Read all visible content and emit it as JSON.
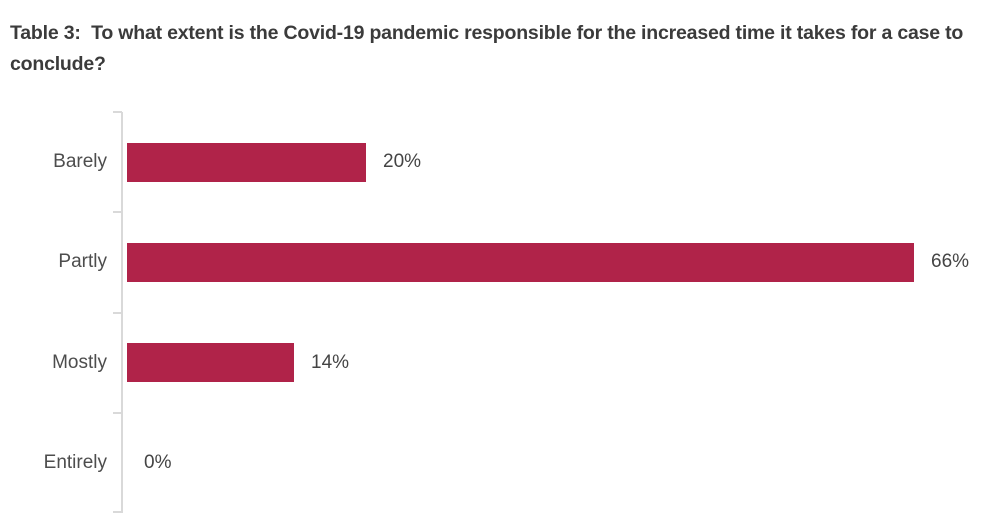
{
  "title": "Table 3:  To what extent is the Covid-19 pandemic responsible for the increased time it takes for a case to conclude?",
  "chart_data": {
    "type": "bar",
    "orientation": "horizontal",
    "title": "Table 3:  To what extent is the Covid-19 pandemic responsible for the increased time it takes for a case to conclude?",
    "categories": [
      "Barely",
      "Partly",
      "Mostly",
      "Entirely"
    ],
    "values": [
      20,
      66,
      14,
      0
    ],
    "value_labels": [
      "20%",
      "66%",
      "14%",
      "0%"
    ],
    "xlabel": "",
    "ylabel": "",
    "xlim": [
      0,
      70
    ],
    "grid": false,
    "legend": false,
    "bar_color": "#b02349",
    "axis_color": "#d9d9d9",
    "title_color": "#3b3b3b",
    "label_color": "#4d4d4d"
  }
}
